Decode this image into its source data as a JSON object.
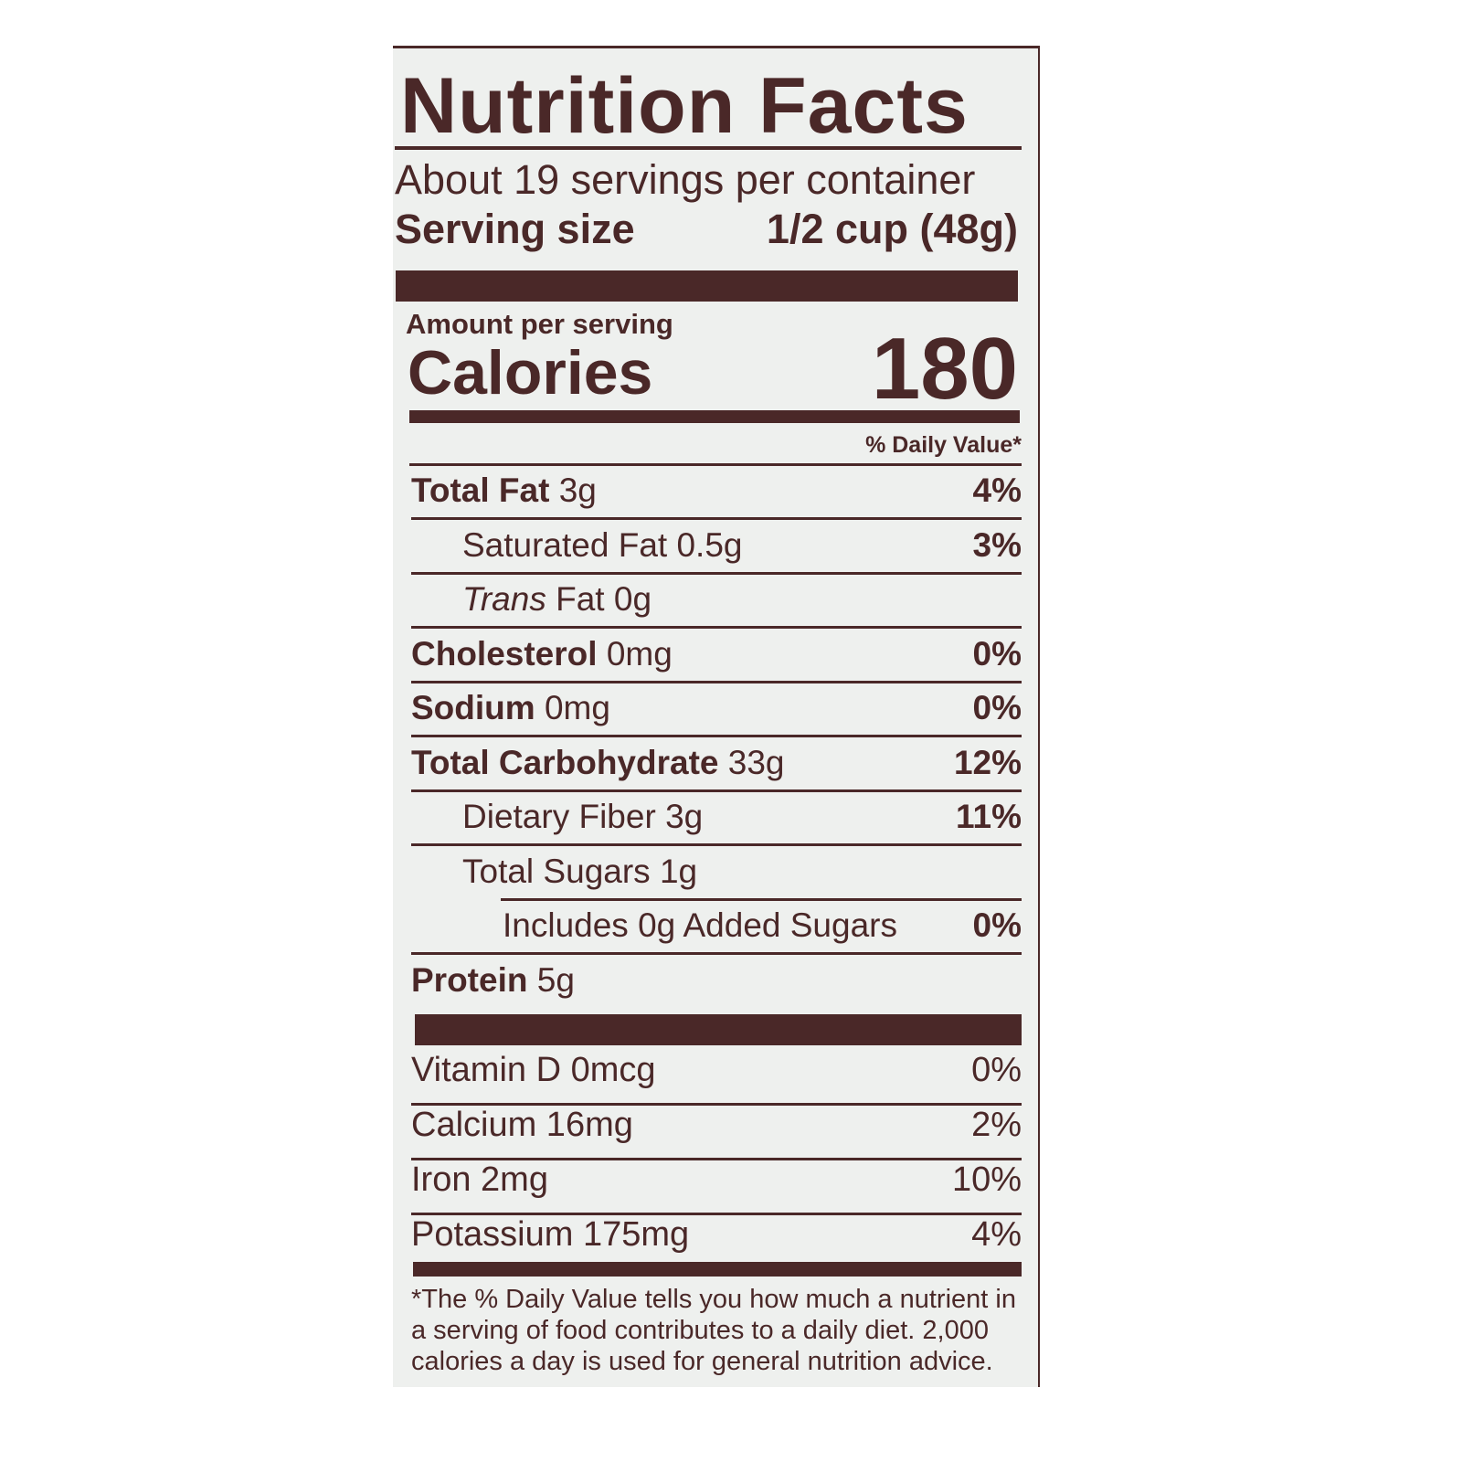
{
  "title": "Nutrition Facts",
  "servings_per_container": "About 19 servings per container",
  "serving_size_label": "Serving size",
  "serving_size_value": "1/2 cup (48g)",
  "amount_per_serving": "Amount per serving",
  "calories_label": "Calories",
  "calories_value": "180",
  "daily_value_header": "% Daily Value*",
  "nutrients": [
    {
      "name": "Total Fat",
      "amount": "3g",
      "dv": "4%"
    },
    {
      "name": "Saturated Fat",
      "amount": "0.5g",
      "dv": "3%"
    },
    {
      "name": "Trans",
      "name2": "Fat",
      "amount": "0g",
      "dv": ""
    },
    {
      "name": "Cholesterol",
      "amount": "0mg",
      "dv": "0%"
    },
    {
      "name": "Sodium",
      "amount": "0mg",
      "dv": "0%"
    },
    {
      "name": "Total Carbohydrate",
      "amount": "33g",
      "dv": "12%"
    },
    {
      "name": "Dietary Fiber",
      "amount": "3g",
      "dv": "11%"
    },
    {
      "name": "Total Sugars",
      "amount": "1g",
      "dv": ""
    },
    {
      "name": "Includes 0g Added Sugars",
      "amount": "",
      "dv": "0%"
    },
    {
      "name": "Protein",
      "amount": "5g",
      "dv": ""
    }
  ],
  "vitamins": [
    {
      "name": "Vitamin D 0mcg",
      "dv": "0%"
    },
    {
      "name": "Calcium 16mg",
      "dv": "2%"
    },
    {
      "name": "Iron 2mg",
      "dv": "10%"
    },
    {
      "name": "Potassium 175mg",
      "dv": "4%"
    }
  ],
  "footnote": [
    "*The % Daily Value tells you how much a nutrient in",
    "a serving of food contributes to a daily diet. 2,000",
    "calories a day is used for general nutrition advice."
  ],
  "colors": {
    "ink": "#4a2828",
    "background": "#eef0ee"
  }
}
